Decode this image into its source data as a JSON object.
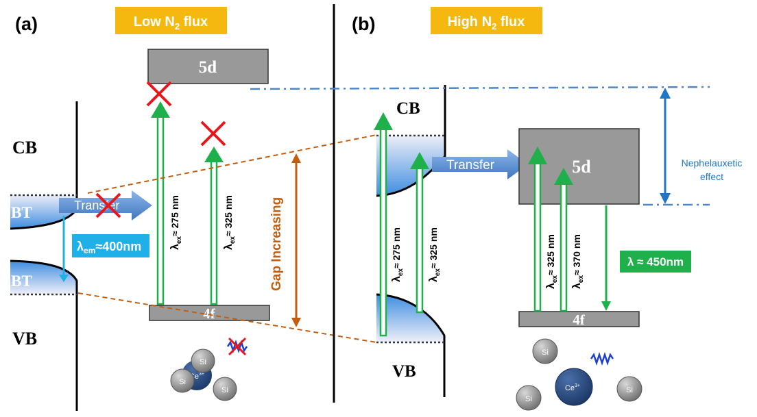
{
  "panel_a": {
    "letter": "(a)",
    "title_main": "Low N",
    "title_sub": "2",
    "title_tail": " flux",
    "cb": "CB",
    "vb": "VB",
    "bt_upper": "BT",
    "bt_lower": "BT",
    "level_5d": "5d",
    "level_4f": "4f",
    "transfer": "Transfer",
    "emission_lambda": "λ",
    "emission_sub": "em",
    "emission_value": "≈400nm",
    "ex1_lambda": "λ",
    "ex1_sub": "ex",
    "ex1_value": "≈ 275 nm",
    "ex2_lambda": "λ",
    "ex2_sub": "ex",
    "ex2_value": "≈ 325 nm",
    "gap_label": "Gap Increasing",
    "si_label": "Si",
    "ce_label": "Ce",
    "ce_charge": "3+"
  },
  "panel_b": {
    "letter": "(b)",
    "title_main": "High N",
    "title_sub": "2",
    "title_tail": " flux",
    "cb": "CB",
    "vb": "VB",
    "level_5d": "5d",
    "level_4f": "4f",
    "transfer": "Transfer",
    "ex1_lambda": "λ",
    "ex1_sub": "ex",
    "ex1_value": "≈ 275 nm",
    "ex2_lambda": "λ",
    "ex2_sub": "ex",
    "ex2_value": "≈ 325 nm",
    "ex3_lambda": "λ",
    "ex3_sub": "ex",
    "ex3_value": "≈ 325 nm",
    "ex4_lambda": "λ",
    "ex4_sub": "ex",
    "ex4_value": "≈ 370 nm",
    "emission_label": "λ ≈ 450nm",
    "nephelauxetic_line1": "Nephelauxetic",
    "nephelauxetic_line2": "effect",
    "si_label": "Si",
    "ce_label": "Ce",
    "ce_charge": "3+"
  },
  "colors": {
    "title_box": "#F5B80E",
    "green_arrow": "#1FAF4B",
    "red_cross": "#E8161B",
    "blue_arrow": "#4F86C6",
    "label_box_blue": "#1FB0E8",
    "label_box_green": "#1FAF4B",
    "gap_orange": "#C25E0F",
    "neph_blue": "#1F76C4",
    "level_gray": "#999999"
  }
}
